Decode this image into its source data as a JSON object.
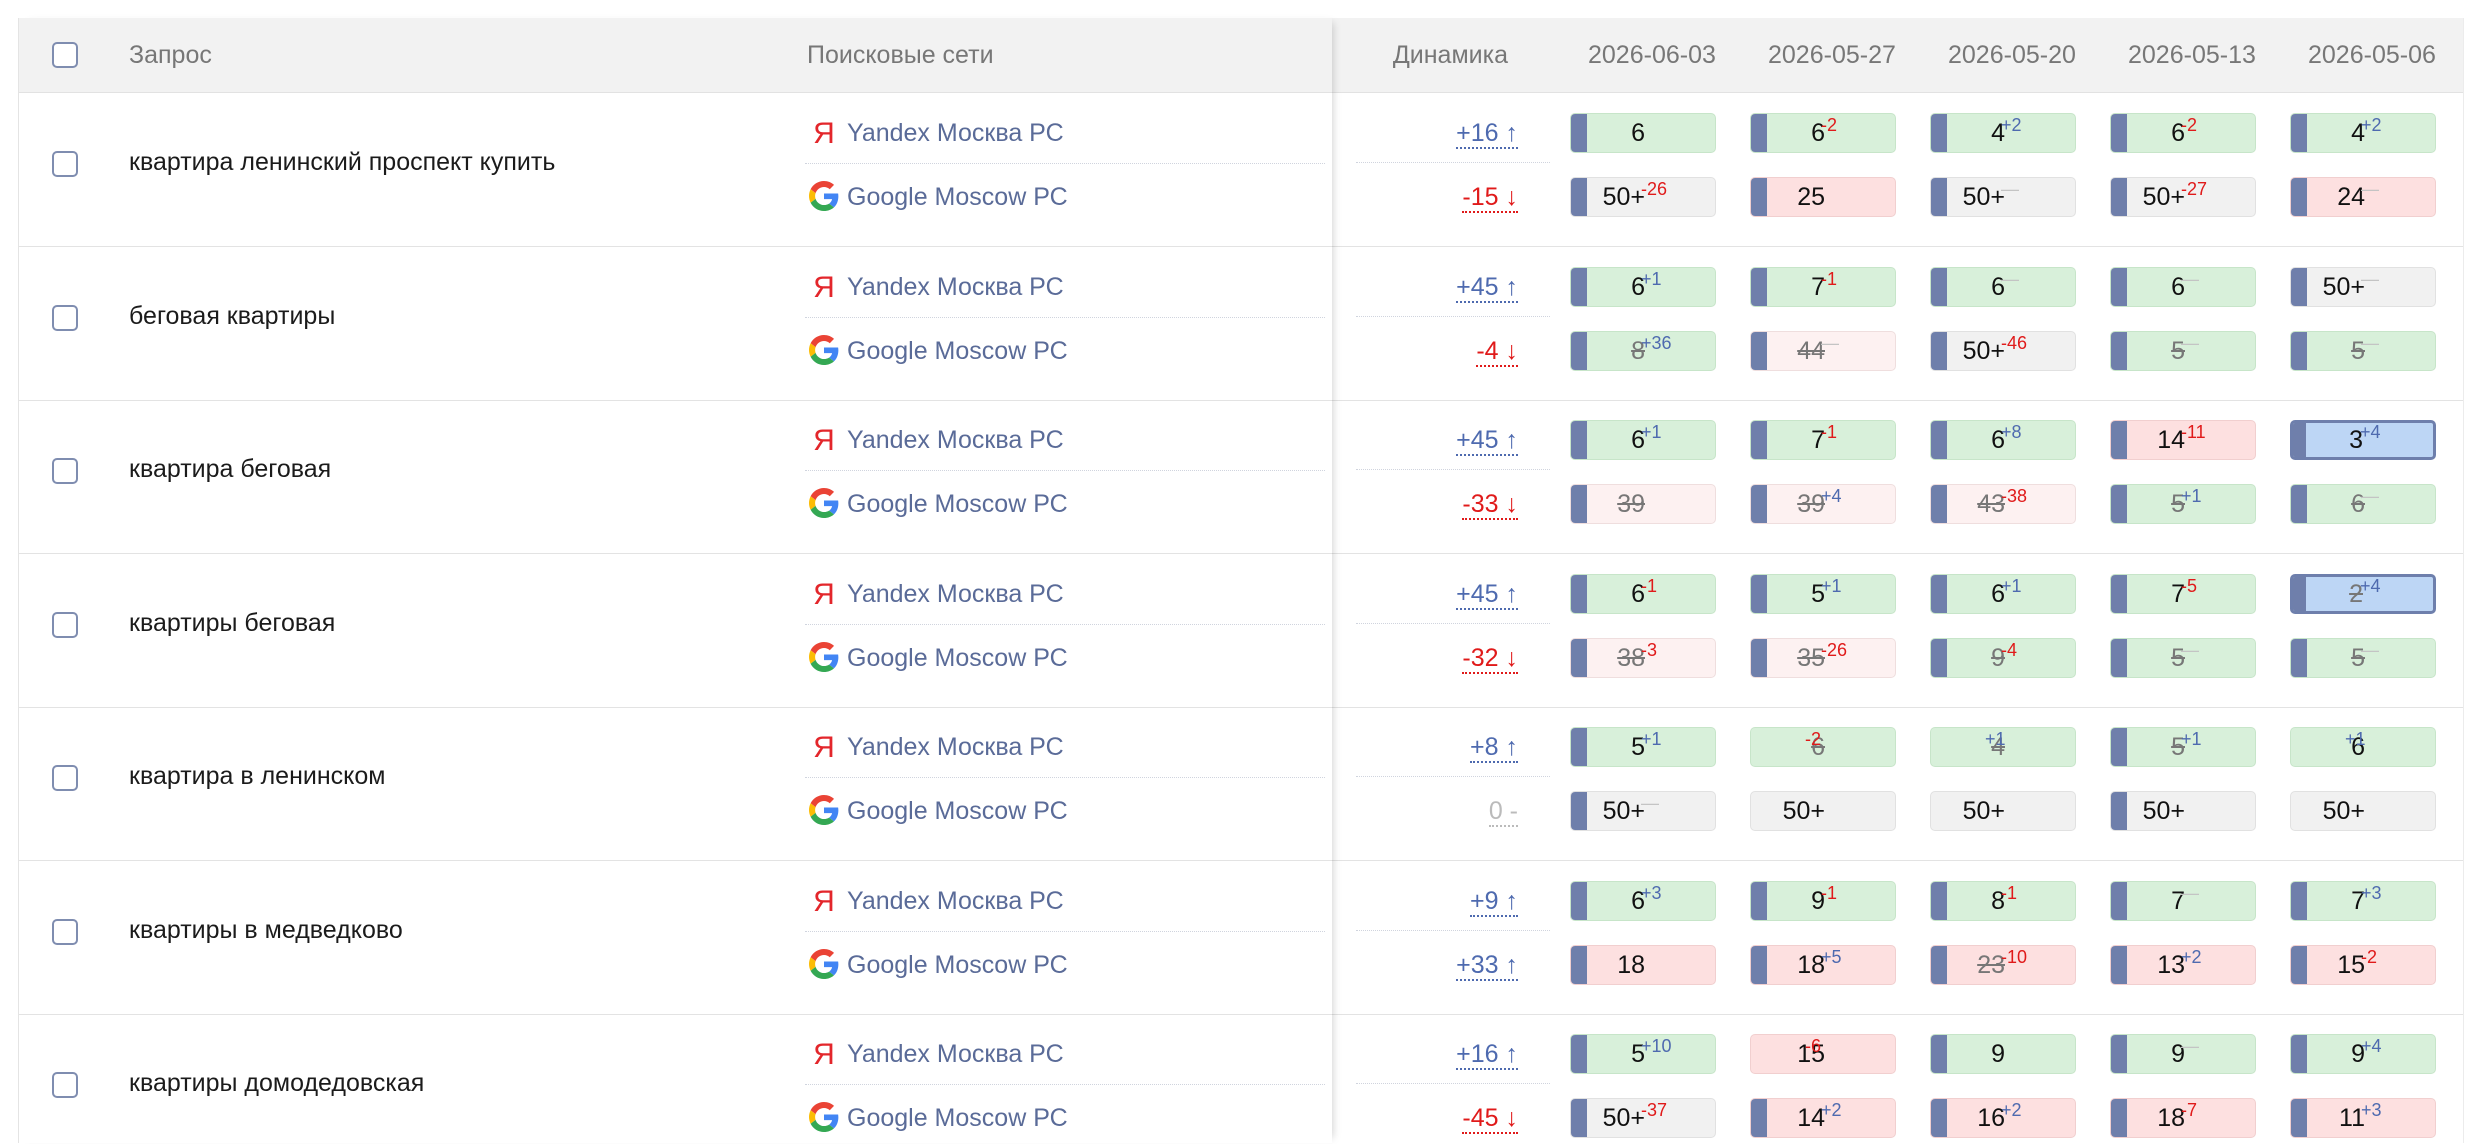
{
  "header": {
    "query_label": "Запрос",
    "engines_label": "Поисковые сети",
    "dynamics_label": "Динамика",
    "dates": [
      "2026-06-03",
      "2026-05-27",
      "2026-05-20",
      "2026-05-13",
      "2026-05-06"
    ]
  },
  "colors": {
    "green": "#d8f0da",
    "pink": "#fde0e0",
    "light_pink": "#fdf1f1",
    "gray": "#f1f1f1",
    "blue": "#bdd6f5",
    "bar": "#6f7fab",
    "up": "#4e6aaf",
    "down": "#e01a1a"
  },
  "rows": [
    {
      "query": "квартира ленинский проспект купить",
      "yandex": {
        "engine": "Yandex Москва РС",
        "dynamics": "+16 ↑",
        "dir": "up",
        "positions": [
          {
            "v": "6",
            "d": "",
            "c": "green",
            "bar": true
          },
          {
            "v": "6",
            "d": "-2",
            "c": "green",
            "bar": true
          },
          {
            "v": "4",
            "d": "+2",
            "c": "green",
            "bar": true
          },
          {
            "v": "6",
            "d": "-2",
            "c": "green",
            "bar": true
          },
          {
            "v": "4",
            "d": "+2",
            "c": "green",
            "bar": true
          }
        ]
      },
      "google": {
        "engine": "Google Moscow РС",
        "dynamics": "-15 ↓",
        "dir": "down",
        "positions": [
          {
            "v": "50+",
            "d": "-26",
            "c": "gray",
            "bar": true
          },
          {
            "v": "25",
            "d": "",
            "c": "pink",
            "bar": true
          },
          {
            "v": "50+",
            "d": "—",
            "c": "gray",
            "bar": true
          },
          {
            "v": "50+",
            "d": "-27",
            "c": "gray",
            "bar": true
          },
          {
            "v": "24",
            "d": "—",
            "c": "pink",
            "bar": true
          }
        ]
      }
    },
    {
      "query": "беговая квартиры",
      "yandex": {
        "engine": "Yandex Москва РС",
        "dynamics": "+45 ↑",
        "dir": "up",
        "positions": [
          {
            "v": "6",
            "d": "+1",
            "c": "green",
            "bar": true
          },
          {
            "v": "7",
            "d": "-1",
            "c": "green",
            "bar": true
          },
          {
            "v": "6",
            "d": "—",
            "c": "green",
            "bar": true
          },
          {
            "v": "6",
            "d": "—",
            "c": "green",
            "bar": true
          },
          {
            "v": "50+",
            "d": "—",
            "c": "gray",
            "bar": true
          }
        ]
      },
      "google": {
        "engine": "Google Moscow РС",
        "dynamics": "-4 ↓",
        "dir": "down",
        "positions": [
          {
            "v": "8",
            "d": "+36",
            "c": "green",
            "bar": true,
            "strike": true
          },
          {
            "v": "44",
            "d": "—",
            "c": "lightpink",
            "bar": true,
            "strike": true
          },
          {
            "v": "50+",
            "d": "-46",
            "c": "gray",
            "bar": true
          },
          {
            "v": "5",
            "d": "—",
            "c": "green",
            "bar": true,
            "strike": true
          },
          {
            "v": "5",
            "d": "—",
            "c": "green",
            "bar": true,
            "strike": true
          }
        ]
      }
    },
    {
      "query": "квартира беговая",
      "yandex": {
        "engine": "Yandex Москва РС",
        "dynamics": "+45 ↑",
        "dir": "up",
        "positions": [
          {
            "v": "6",
            "d": "+1",
            "c": "green",
            "bar": true
          },
          {
            "v": "7",
            "d": "-1",
            "c": "green",
            "bar": true
          },
          {
            "v": "6",
            "d": "+8",
            "c": "green",
            "bar": true
          },
          {
            "v": "14",
            "d": "-11",
            "c": "pink",
            "bar": true
          },
          {
            "v": "3",
            "d": "+4",
            "c": "blue",
            "bar": true
          }
        ]
      },
      "google": {
        "engine": "Google Moscow РС",
        "dynamics": "-33 ↓",
        "dir": "down",
        "positions": [
          {
            "v": "39",
            "d": "",
            "c": "lightpink",
            "bar": true,
            "strike": true
          },
          {
            "v": "39",
            "d": "+4",
            "c": "lightpink",
            "bar": true,
            "strike": true
          },
          {
            "v": "43",
            "d": "-38",
            "c": "lightpink",
            "bar": true,
            "strike": true
          },
          {
            "v": "5",
            "d": "+1",
            "c": "green",
            "bar": true,
            "strike": true
          },
          {
            "v": "6",
            "d": "—",
            "c": "green",
            "bar": true,
            "strike": true
          }
        ]
      }
    },
    {
      "query": "квартиры беговая",
      "yandex": {
        "engine": "Yandex Москва РС",
        "dynamics": "+45 ↑",
        "dir": "up",
        "positions": [
          {
            "v": "6",
            "d": "-1",
            "c": "green",
            "bar": true
          },
          {
            "v": "5",
            "d": "+1",
            "c": "green",
            "bar": true
          },
          {
            "v": "6",
            "d": "+1",
            "c": "green",
            "bar": true
          },
          {
            "v": "7",
            "d": "-5",
            "c": "green",
            "bar": true
          },
          {
            "v": "2",
            "d": "+4",
            "c": "blue",
            "bar": true,
            "strike": true
          }
        ]
      },
      "google": {
        "engine": "Google Moscow РС",
        "dynamics": "-32 ↓",
        "dir": "down",
        "positions": [
          {
            "v": "38",
            "d": "-3",
            "c": "lightpink",
            "bar": true,
            "strike": true
          },
          {
            "v": "35",
            "d": "-26",
            "c": "lightpink",
            "bar": true,
            "strike": true
          },
          {
            "v": "9",
            "d": "-4",
            "c": "green",
            "bar": true,
            "strike": true
          },
          {
            "v": "5",
            "d": "—",
            "c": "green",
            "bar": true,
            "strike": true
          },
          {
            "v": "5",
            "d": "—",
            "c": "green",
            "bar": true,
            "strike": true
          }
        ]
      }
    },
    {
      "query": "квартира в ленинском",
      "yandex": {
        "engine": "Yandex Москва РС",
        "dynamics": "+8 ↑",
        "dir": "up",
        "positions": [
          {
            "v": "5",
            "d": "+1",
            "c": "green",
            "bar": true
          },
          {
            "v": "6",
            "d": "-2",
            "c": "green",
            "bar": false,
            "strike": true
          },
          {
            "v": "4",
            "d": "+1",
            "c": "green",
            "bar": false,
            "strike": true
          },
          {
            "v": "5",
            "d": "+1",
            "c": "green",
            "bar": true,
            "strike": true
          },
          {
            "v": "6",
            "d": "+1",
            "c": "green",
            "bar": false
          }
        ]
      },
      "google": {
        "engine": "Google Moscow РС",
        "dynamics": "0 -",
        "dir": "zero",
        "positions": [
          {
            "v": "50+",
            "d": "—",
            "c": "gray",
            "bar": true
          },
          {
            "v": "50+",
            "d": "",
            "c": "gray",
            "bar": false
          },
          {
            "v": "50+",
            "d": "",
            "c": "gray",
            "bar": false
          },
          {
            "v": "50+",
            "d": "",
            "c": "gray",
            "bar": true
          },
          {
            "v": "50+",
            "d": "",
            "c": "gray",
            "bar": false
          }
        ]
      }
    },
    {
      "query": "квартиры в медведково",
      "yandex": {
        "engine": "Yandex Москва РС",
        "dynamics": "+9 ↑",
        "dir": "up",
        "positions": [
          {
            "v": "6",
            "d": "+3",
            "c": "green",
            "bar": true
          },
          {
            "v": "9",
            "d": "-1",
            "c": "green",
            "bar": true
          },
          {
            "v": "8",
            "d": "-1",
            "c": "green",
            "bar": true
          },
          {
            "v": "7",
            "d": "—",
            "c": "green",
            "bar": true
          },
          {
            "v": "7",
            "d": "+3",
            "c": "green",
            "bar": true
          }
        ]
      },
      "google": {
        "engine": "Google Moscow РС",
        "dynamics": "+33 ↑",
        "dir": "up",
        "positions": [
          {
            "v": "18",
            "d": "",
            "c": "pink",
            "bar": true
          },
          {
            "v": "18",
            "d": "+5",
            "c": "pink",
            "bar": true
          },
          {
            "v": "23",
            "d": "-10",
            "c": "pink",
            "bar": true,
            "strike": true
          },
          {
            "v": "13",
            "d": "+2",
            "c": "pink",
            "bar": true
          },
          {
            "v": "15",
            "d": "-2",
            "c": "pink",
            "bar": true
          }
        ]
      }
    },
    {
      "query": "квартиры домодедовская",
      "yandex": {
        "engine": "Yandex Москва РС",
        "dynamics": "+16 ↑",
        "dir": "up",
        "positions": [
          {
            "v": "5",
            "d": "+10",
            "c": "green",
            "bar": true
          },
          {
            "v": "15",
            "d": "-6",
            "c": "pink",
            "bar": false
          },
          {
            "v": "9",
            "d": "",
            "c": "green",
            "bar": true
          },
          {
            "v": "9",
            "d": "—",
            "c": "green",
            "bar": true
          },
          {
            "v": "9",
            "d": "+4",
            "c": "green",
            "bar": true
          }
        ]
      },
      "google": {
        "engine": "Google Moscow РС",
        "dynamics": "-45 ↓",
        "dir": "down",
        "positions": [
          {
            "v": "50+",
            "d": "-37",
            "c": "gray",
            "bar": true
          },
          {
            "v": "14",
            "d": "+2",
            "c": "pink",
            "bar": true
          },
          {
            "v": "16",
            "d": "+2",
            "c": "pink",
            "bar": true
          },
          {
            "v": "18",
            "d": "-7",
            "c": "pink",
            "bar": true
          },
          {
            "v": "11",
            "d": "+3",
            "c": "pink",
            "bar": true
          }
        ]
      }
    }
  ]
}
